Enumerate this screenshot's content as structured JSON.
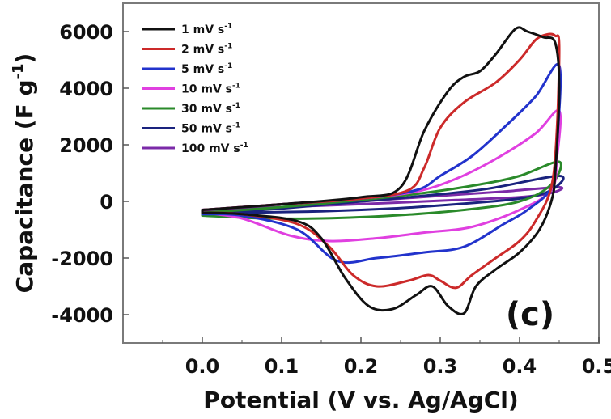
{
  "chart_data": {
    "type": "line",
    "xlabel": "Potential (V vs. Ag/AgCl)",
    "ylabel": "Capacitance (F g",
    "ylabel_sup": "-1",
    "ylabel_close": ")",
    "panel_label": "(c)",
    "xlim": [
      -0.1,
      0.5
    ],
    "ylim": [
      -5000,
      7000
    ],
    "xticks": [
      0.0,
      0.1,
      0.2,
      0.3,
      0.4,
      0.5
    ],
    "xtick_labels": [
      "0.0",
      "0.1",
      "0.2",
      "0.3",
      "0.4",
      "0.5"
    ],
    "yticks": [
      -4000,
      -2000,
      0,
      2000,
      4000,
      6000
    ],
    "ytick_labels": [
      "-4000",
      "-2000",
      "0",
      "2000",
      "4000",
      "6000"
    ],
    "legend_placement": "top-left",
    "grid": false,
    "series": [
      {
        "name": "1 mV s",
        "name_sup": "-1",
        "color": "#111111",
        "upper": [
          [
            0.0,
            -300
          ],
          [
            0.1,
            -100
          ],
          [
            0.2,
            150
          ],
          [
            0.25,
            500
          ],
          [
            0.28,
            2500
          ],
          [
            0.31,
            3900
          ],
          [
            0.33,
            4400
          ],
          [
            0.35,
            4600
          ],
          [
            0.37,
            5200
          ],
          [
            0.395,
            6100
          ],
          [
            0.41,
            6000
          ],
          [
            0.43,
            5800
          ],
          [
            0.445,
            5600
          ],
          [
            0.45,
            4000
          ]
        ],
        "lower": [
          [
            0.45,
            4000
          ],
          [
            0.445,
            1000
          ],
          [
            0.44,
            0
          ],
          [
            0.425,
            -1000
          ],
          [
            0.4,
            -1800
          ],
          [
            0.37,
            -2400
          ],
          [
            0.345,
            -3000
          ],
          [
            0.33,
            -3950
          ],
          [
            0.31,
            -3700
          ],
          [
            0.29,
            -3000
          ],
          [
            0.27,
            -3300
          ],
          [
            0.24,
            -3800
          ],
          [
            0.21,
            -3700
          ],
          [
            0.18,
            -2700
          ],
          [
            0.15,
            -1300
          ],
          [
            0.12,
            -700
          ],
          [
            0.05,
            -450
          ],
          [
            0.0,
            -400
          ]
        ]
      },
      {
        "name": "2 mV s",
        "name_sup": "-1",
        "color": "#cc2a2a",
        "upper": [
          [
            0.0,
            -300
          ],
          [
            0.1,
            -100
          ],
          [
            0.2,
            100
          ],
          [
            0.26,
            400
          ],
          [
            0.28,
            1200
          ],
          [
            0.3,
            2600
          ],
          [
            0.33,
            3500
          ],
          [
            0.37,
            4200
          ],
          [
            0.4,
            5000
          ],
          [
            0.42,
            5700
          ],
          [
            0.435,
            5900
          ],
          [
            0.445,
            5850
          ],
          [
            0.45,
            5500
          ]
        ],
        "lower": [
          [
            0.45,
            5500
          ],
          [
            0.447,
            2500
          ],
          [
            0.44,
            500
          ],
          [
            0.42,
            -700
          ],
          [
            0.4,
            -1400
          ],
          [
            0.37,
            -2000
          ],
          [
            0.34,
            -2600
          ],
          [
            0.32,
            -3050
          ],
          [
            0.3,
            -2800
          ],
          [
            0.285,
            -2600
          ],
          [
            0.26,
            -2800
          ],
          [
            0.22,
            -3000
          ],
          [
            0.19,
            -2600
          ],
          [
            0.16,
            -1600
          ],
          [
            0.12,
            -800
          ],
          [
            0.05,
            -450
          ],
          [
            0.0,
            -400
          ]
        ]
      },
      {
        "name": "5 mV s",
        "name_sup": "-1",
        "color": "#2233cc",
        "upper": [
          [
            0.0,
            -300
          ],
          [
            0.1,
            -100
          ],
          [
            0.2,
            100
          ],
          [
            0.27,
            400
          ],
          [
            0.3,
            900
          ],
          [
            0.34,
            1600
          ],
          [
            0.38,
            2600
          ],
          [
            0.42,
            3700
          ],
          [
            0.45,
            4800
          ]
        ],
        "lower": [
          [
            0.45,
            4800
          ],
          [
            0.447,
            2000
          ],
          [
            0.44,
            500
          ],
          [
            0.41,
            -300
          ],
          [
            0.38,
            -800
          ],
          [
            0.33,
            -1600
          ],
          [
            0.28,
            -1800
          ],
          [
            0.22,
            -2000
          ],
          [
            0.17,
            -2100
          ],
          [
            0.12,
            -1000
          ],
          [
            0.05,
            -500
          ],
          [
            0.0,
            -450
          ]
        ]
      },
      {
        "name": "10 mV s",
        "name_sup": "-1",
        "color": "#e040e0",
        "upper": [
          [
            0.0,
            -300
          ],
          [
            0.1,
            -100
          ],
          [
            0.2,
            100
          ],
          [
            0.27,
            350
          ],
          [
            0.32,
            800
          ],
          [
            0.37,
            1500
          ],
          [
            0.42,
            2400
          ],
          [
            0.45,
            3200
          ]
        ],
        "lower": [
          [
            0.45,
            3200
          ],
          [
            0.447,
            1500
          ],
          [
            0.44,
            400
          ],
          [
            0.4,
            -300
          ],
          [
            0.34,
            -900
          ],
          [
            0.28,
            -1100
          ],
          [
            0.22,
            -1300
          ],
          [
            0.16,
            -1400
          ],
          [
            0.11,
            -1200
          ],
          [
            0.05,
            -600
          ],
          [
            0.0,
            -400
          ]
        ]
      },
      {
        "name": "30 mV s",
        "name_sup": "-1",
        "color": "#2a8a2a",
        "upper": [
          [
            0.0,
            -400
          ],
          [
            0.1,
            -200
          ],
          [
            0.2,
            50
          ],
          [
            0.28,
            300
          ],
          [
            0.35,
            600
          ],
          [
            0.4,
            900
          ],
          [
            0.45,
            1400
          ]
        ],
        "lower": [
          [
            0.45,
            1400
          ],
          [
            0.44,
            600
          ],
          [
            0.4,
            0
          ],
          [
            0.33,
            -300
          ],
          [
            0.24,
            -500
          ],
          [
            0.15,
            -600
          ],
          [
            0.08,
            -600
          ],
          [
            0.0,
            -500
          ]
        ]
      },
      {
        "name": "50 mV s",
        "name_sup": "-1",
        "color": "#1a237e",
        "upper": [
          [
            0.0,
            -450
          ],
          [
            0.1,
            -250
          ],
          [
            0.2,
            0
          ],
          [
            0.28,
            200
          ],
          [
            0.36,
            450
          ],
          [
            0.45,
            900
          ]
        ],
        "lower": [
          [
            0.45,
            900
          ],
          [
            0.44,
            400
          ],
          [
            0.4,
            100
          ],
          [
            0.32,
            -100
          ],
          [
            0.24,
            -250
          ],
          [
            0.15,
            -350
          ],
          [
            0.05,
            -400
          ],
          [
            0.0,
            -450
          ]
        ]
      },
      {
        "name": "100 mV s",
        "name_sup": "-1",
        "color": "#7b2aa8",
        "upper": [
          [
            0.0,
            -400
          ],
          [
            0.1,
            -200
          ],
          [
            0.2,
            0
          ],
          [
            0.3,
            200
          ],
          [
            0.38,
            350
          ],
          [
            0.45,
            500
          ]
        ],
        "lower": [
          [
            0.45,
            500
          ],
          [
            0.44,
            300
          ],
          [
            0.4,
            150
          ],
          [
            0.32,
            50
          ],
          [
            0.24,
            -50
          ],
          [
            0.15,
            -150
          ],
          [
            0.05,
            -250
          ],
          [
            0.0,
            -350
          ]
        ]
      }
    ]
  }
}
